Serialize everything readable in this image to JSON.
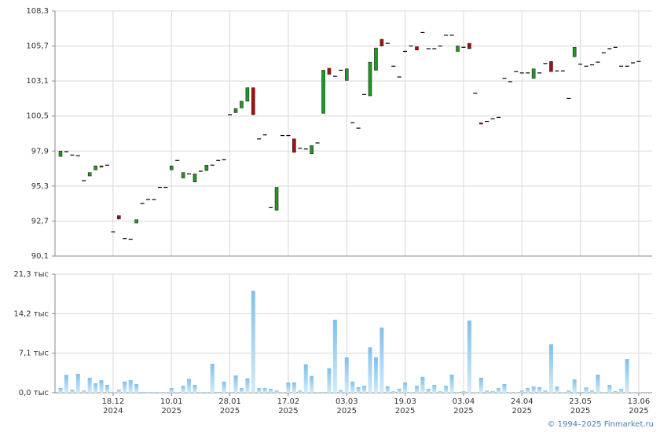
{
  "chart_data": [
    {
      "type": "candlestick",
      "open": [
        97.5,
        97.85,
        97.6,
        97.55,
        95.7,
        96.05,
        96.5,
        96.8,
        96.85,
        91.9,
        93.1,
        91.4,
        91.35,
        92.55,
        94.0,
        94.3,
        94.3,
        95.2,
        95.2,
        96.5,
        97.2,
        95.9,
        96.2,
        95.6,
        96.4,
        96.45,
        96.85,
        97.2,
        97.25,
        100.6,
        100.75,
        101.1,
        101.6,
        102.6,
        98.8,
        99.1,
        93.7,
        93.5,
        99.05,
        99.05,
        98.8,
        98.1,
        98.05,
        97.7,
        98.5,
        100.7,
        104.05,
        103.45,
        103.9,
        103.15,
        100.0,
        99.6,
        102.1,
        102.0,
        103.9,
        106.2,
        105.9,
        104.2,
        103.4,
        105.3,
        105.7,
        105.65,
        106.7,
        105.5,
        105.5,
        105.7,
        106.5,
        106.5,
        105.3,
        105.6,
        105.9,
        102.2,
        100.0,
        100.1,
        100.3,
        100.4,
        103.3,
        103.05,
        103.8,
        103.7,
        103.7,
        103.3,
        103.7,
        104.4,
        104.55,
        103.85,
        103.85,
        101.8,
        104.9,
        104.35,
        104.2,
        104.3,
        104.5,
        105.2,
        105.5,
        105.6,
        104.2,
        104.2,
        104.45,
        104.55
      ],
      "close": [
        97.9,
        97.85,
        97.6,
        97.55,
        95.7,
        96.3,
        96.8,
        96.7,
        96.85,
        91.9,
        92.85,
        91.4,
        91.35,
        92.8,
        94.0,
        94.3,
        94.3,
        95.2,
        95.2,
        96.8,
        97.2,
        96.3,
        96.2,
        96.2,
        96.4,
        96.85,
        96.85,
        97.2,
        97.25,
        100.6,
        101.05,
        101.6,
        102.6,
        100.6,
        98.8,
        99.1,
        93.7,
        95.2,
        99.05,
        99.05,
        97.8,
        98.1,
        98.05,
        98.3,
        98.5,
        103.9,
        103.6,
        103.45,
        103.9,
        104.0,
        100.0,
        99.6,
        102.1,
        104.5,
        105.55,
        105.7,
        105.9,
        104.2,
        103.4,
        105.3,
        105.7,
        105.4,
        106.7,
        105.5,
        105.5,
        105.7,
        106.5,
        106.5,
        105.7,
        105.6,
        105.5,
        102.2,
        99.9,
        100.1,
        100.3,
        100.4,
        103.3,
        103.05,
        103.8,
        103.7,
        103.7,
        104.0,
        103.7,
        104.4,
        103.8,
        103.85,
        103.85,
        101.8,
        105.6,
        104.35,
        104.2,
        104.3,
        104.5,
        105.2,
        105.5,
        105.6,
        104.2,
        104.2,
        104.45,
        104.55
      ],
      "up_color": "#1e9a1e",
      "down_color": "#a80e0e",
      "flat_color": "#000000",
      "ylim": [
        90.1,
        108.3
      ],
      "yticks": [
        {
          "value": 90.1,
          "label": "90,1"
        },
        {
          "value": 92.7,
          "label": "92,7"
        },
        {
          "value": 95.3,
          "label": "95,3"
        },
        {
          "value": 97.9,
          "label": "97,9"
        },
        {
          "value": 100.5,
          "label": "100,5"
        },
        {
          "value": 103.1,
          "label": "103,1"
        },
        {
          "value": 105.7,
          "label": "105,7"
        },
        {
          "value": 108.3,
          "label": "108,3"
        }
      ],
      "grid": true
    },
    {
      "type": "bar",
      "categories": [
        null,
        null,
        null,
        null,
        null,
        null,
        null,
        null,
        null,
        "18.12 2024",
        null,
        null,
        null,
        null,
        null,
        null,
        null,
        null,
        null,
        "10.01 2025",
        null,
        null,
        null,
        null,
        null,
        null,
        null,
        null,
        null,
        "28.01 2025",
        null,
        null,
        null,
        null,
        null,
        null,
        null,
        null,
        null,
        "17.02 2025",
        null,
        null,
        null,
        null,
        null,
        null,
        null,
        null,
        null,
        "03.03 2025",
        null,
        null,
        null,
        null,
        null,
        null,
        null,
        null,
        null,
        "19.03 2025",
        null,
        null,
        null,
        null,
        null,
        null,
        null,
        null,
        null,
        "03.04 2025",
        null,
        null,
        null,
        null,
        null,
        null,
        null,
        null,
        null,
        "24.04 2025",
        null,
        null,
        null,
        null,
        null,
        null,
        null,
        null,
        null,
        "23.05 2025",
        null,
        null,
        null,
        null,
        null,
        null,
        null,
        null,
        null,
        "13.06 2025"
      ],
      "values": [
        0.85,
        3.2,
        0.55,
        3.4,
        0.4,
        2.7,
        1.7,
        2.25,
        1.4,
        0.05,
        0.55,
        2.0,
        2.25,
        1.55,
        0.15,
        0.1,
        0.1,
        0.1,
        0.1,
        0.85,
        0.1,
        1.25,
        2.5,
        1.4,
        0.1,
        0.1,
        5.2,
        0.15,
        2.0,
        0.1,
        3.1,
        0.85,
        2.6,
        18.3,
        0.85,
        0.85,
        0.7,
        0.4,
        0.05,
        1.85,
        1.85,
        0.4,
        5.1,
        3.0,
        0.1,
        0.15,
        4.4,
        13.1,
        0.5,
        6.35,
        2.0,
        1.0,
        1.25,
        8.15,
        6.35,
        11.7,
        1.15,
        0.25,
        0.7,
        1.85,
        0.1,
        1.25,
        2.85,
        0.7,
        1.4,
        0.25,
        1.25,
        3.25,
        0.15,
        0.25,
        12.95,
        0.1,
        2.7,
        0.4,
        0.3,
        0.85,
        1.55,
        0.1,
        0.1,
        0.4,
        0.85,
        1.1,
        1.0,
        0.4,
        8.7,
        1.1,
        0.1,
        0.4,
        2.4,
        0.15,
        0.95,
        0.4,
        3.25,
        0.1,
        1.4,
        0.3,
        0.7,
        6.05,
        0.1,
        0.1
      ],
      "ylim": [
        0,
        21.3
      ],
      "yticks": [
        {
          "value": 0,
          "label": "0,0 тыс"
        },
        {
          "value": 7.1,
          "label": "7,1 тыс"
        },
        {
          "value": 14.2,
          "label": "14,2 тыс"
        },
        {
          "value": 21.3,
          "label": "21,3 тыс"
        }
      ],
      "grid": true
    }
  ],
  "copyright": "© 1994–2025 Finmarket.ru"
}
